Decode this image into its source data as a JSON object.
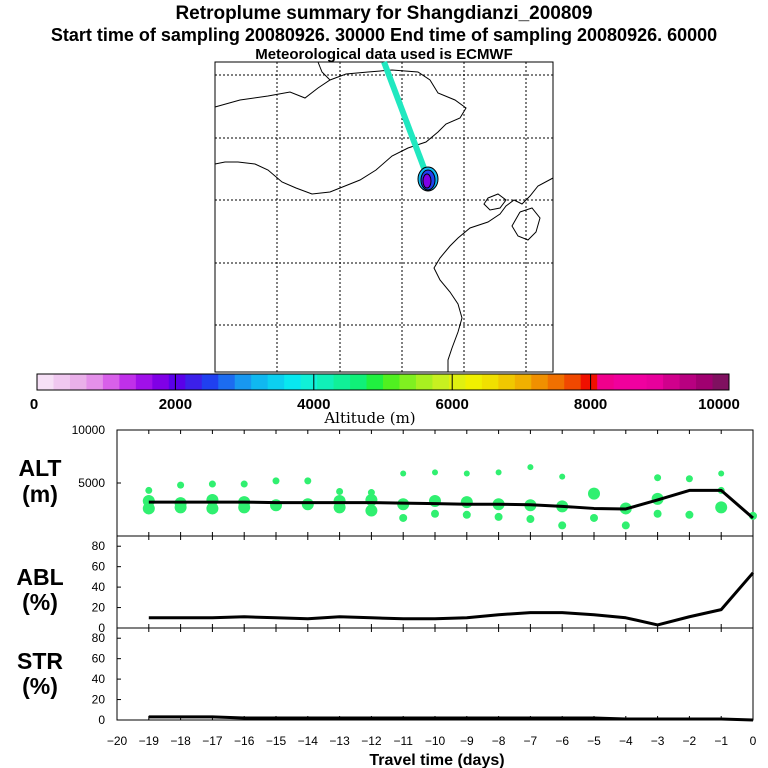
{
  "titles": {
    "line1": "Retroplume summary for Shangdianzi_200809",
    "line2": "Start time of sampling 20080926. 30000     End time of sampling 20080926. 60000",
    "line3": "Meteorological data used is ECMWF"
  },
  "colorbar": {
    "label": "Altitude (m)",
    "tick_labels": [
      "0",
      "2000",
      "4000",
      "6000",
      "8000",
      "10000"
    ],
    "colors": [
      "#f6e0f6",
      "#f0c8f0",
      "#eab0ea",
      "#e490ea",
      "#d860ea",
      "#c030ea",
      "#a010ea",
      "#8000e6",
      "#5a00ea",
      "#3c20ea",
      "#2040f0",
      "#1c6cf0",
      "#1898f0",
      "#10b8f0",
      "#0cd0f0",
      "#08e8f0",
      "#10f0d8",
      "#10f0b8",
      "#10f098",
      "#10f078",
      "#20f040",
      "#50f020",
      "#80f020",
      "#a8f020",
      "#c8f020",
      "#e0f010",
      "#f0f000",
      "#f0e000",
      "#f0c800",
      "#f0b000",
      "#f09000",
      "#f07000",
      "#f04800",
      "#f01000",
      "#f0008c",
      "#f0009c",
      "#f000a0",
      "#e8009c",
      "#d0008c",
      "#b80080",
      "#a00070",
      "#801060"
    ]
  },
  "map": {
    "gridlines": 5,
    "trajectory_color": "#20e8c0",
    "plume_colors": [
      "#8000e6",
      "#2040f0",
      "#10b8f0"
    ]
  },
  "panels": {
    "alt": {
      "label1": "ALT",
      "label2": "(m)",
      "yticks": [
        "10000",
        "5000"
      ]
    },
    "abl": {
      "label1": "ABL",
      "label2": "(%)",
      "yticks": [
        "80",
        "60",
        "40",
        "20",
        "0"
      ]
    },
    "str": {
      "label1": "STR",
      "label2": "(%)",
      "yticks": [
        "80",
        "60",
        "40",
        "20",
        "0"
      ]
    }
  },
  "xaxis": {
    "label": "Travel time (days)",
    "ticks": [
      "−20",
      "−19",
      "−18",
      "−17",
      "−16",
      "−15",
      "−14",
      "−13",
      "−12",
      "−11",
      "−10",
      "−9",
      "−8",
      "−7",
      "−6",
      "−5",
      "−4",
      "−3",
      "−2",
      "−1",
      "0"
    ]
  },
  "chart_data": [
    {
      "type": "scatter",
      "title": "ALT",
      "xlabel": "Travel time (days)",
      "ylabel": "Altitude (m)",
      "xlim": [
        -20,
        0
      ],
      "ylim": [
        0,
        10000
      ],
      "series": [
        {
          "name": "mean altitude",
          "kind": "line",
          "x": [
            -19,
            -18,
            -17,
            -16,
            -15,
            -14,
            -13,
            -12,
            -11,
            -10,
            -9,
            -8,
            -7,
            -6,
            -5,
            -4,
            -3,
            -2,
            -1,
            0
          ],
          "values": [
            3200,
            3200,
            3200,
            3200,
            3150,
            3150,
            3150,
            3150,
            3100,
            3050,
            3000,
            3000,
            2950,
            2800,
            2600,
            2550,
            3400,
            4300,
            4300,
            1700
          ]
        },
        {
          "name": "particle altitudes",
          "kind": "points",
          "x": [
            -19,
            -19,
            -19,
            -18,
            -18,
            -18,
            -17,
            -17,
            -17,
            -16,
            -16,
            -16,
            -15,
            -15,
            -14,
            -14,
            -13,
            -13,
            -13,
            -12,
            -12,
            -12,
            -11,
            -11,
            -11,
            -10,
            -10,
            -10,
            -9,
            -9,
            -9,
            -8,
            -8,
            -8,
            -7,
            -7,
            -7,
            -6,
            -6,
            -6,
            -5,
            -5,
            -4,
            -4,
            -3,
            -3,
            -3,
            -2,
            -2,
            -1,
            -1,
            -1,
            0
          ],
          "values": [
            4300,
            3300,
            2600,
            4800,
            3100,
            2700,
            4900,
            3400,
            2600,
            4900,
            3200,
            2700,
            5200,
            2900,
            5200,
            3000,
            4200,
            3300,
            2700,
            4100,
            3400,
            2400,
            5900,
            3000,
            1700,
            6000,
            3300,
            2100,
            5900,
            3200,
            2000,
            6000,
            3000,
            1800,
            6500,
            2900,
            1600,
            5600,
            2800,
            1000,
            4000,
            1700,
            2600,
            1000,
            5500,
            3500,
            2100,
            5400,
            2000,
            5900,
            4300,
            2700,
            1900
          ]
        }
      ]
    },
    {
      "type": "line",
      "title": "ABL",
      "xlabel": "Travel time (days)",
      "ylabel": "ABL (%)",
      "xlim": [
        -20,
        0
      ],
      "ylim": [
        0,
        90
      ],
      "x": [
        -19,
        -18,
        -17,
        -16,
        -15,
        -14,
        -13,
        -12,
        -11,
        -10,
        -9,
        -8,
        -7,
        -6,
        -5,
        -4,
        -3,
        -2,
        -1,
        0
      ],
      "values": [
        10,
        10,
        10,
        11,
        10,
        9,
        11,
        10,
        9,
        9,
        10,
        13,
        15,
        15,
        13,
        10,
        3,
        11,
        18,
        54
      ]
    },
    {
      "type": "line",
      "title": "STR",
      "xlabel": "Travel time (days)",
      "ylabel": "STR (%)",
      "xlim": [
        -20,
        0
      ],
      "ylim": [
        0,
        90
      ],
      "x": [
        -19,
        -18,
        -17,
        -16,
        -15,
        -14,
        -13,
        -12,
        -11,
        -10,
        -9,
        -8,
        -7,
        -6,
        -5,
        -4,
        -3,
        -2,
        -1,
        0
      ],
      "values": [
        3,
        3,
        3,
        2,
        2,
        2,
        2,
        2,
        2,
        2,
        2,
        2,
        2,
        2,
        2,
        1,
        1,
        1,
        1,
        0
      ]
    }
  ]
}
